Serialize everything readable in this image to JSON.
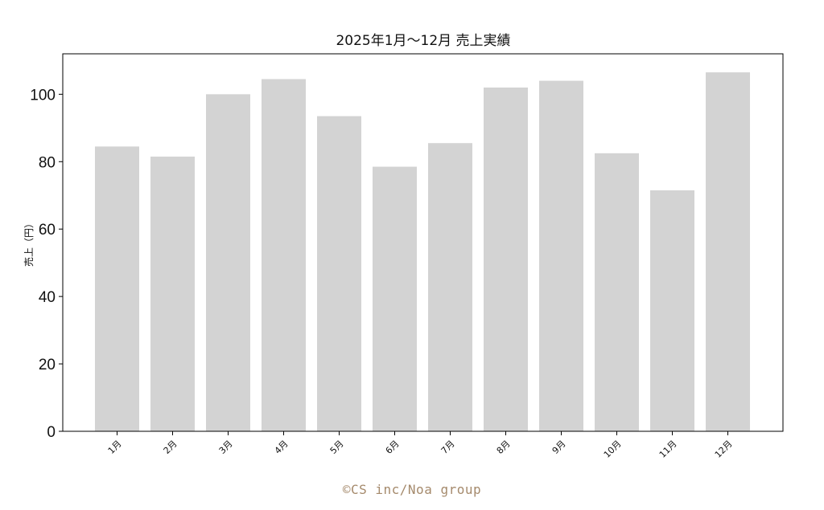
{
  "chart_data": {
    "type": "bar",
    "title": "2025年1月〜12月 売上実績",
    "ylabel": "売上（円）",
    "xlabel": "",
    "categories": [
      "1月",
      "2月",
      "3月",
      "4月",
      "5月",
      "6月",
      "7月",
      "8月",
      "9月",
      "10月",
      "11月",
      "12月"
    ],
    "values": [
      84.5,
      81.5,
      100,
      104.5,
      93.5,
      78.5,
      85.5,
      102,
      104,
      82.5,
      71.5,
      106.5
    ],
    "ylim": [
      0,
      112
    ],
    "yticks": [
      0,
      20,
      40,
      60,
      80,
      100
    ],
    "grid": false,
    "bar_color": "#d3d3d3"
  },
  "footer": {
    "text": "©CS inc/Noa group",
    "color": "#a58a6c"
  }
}
